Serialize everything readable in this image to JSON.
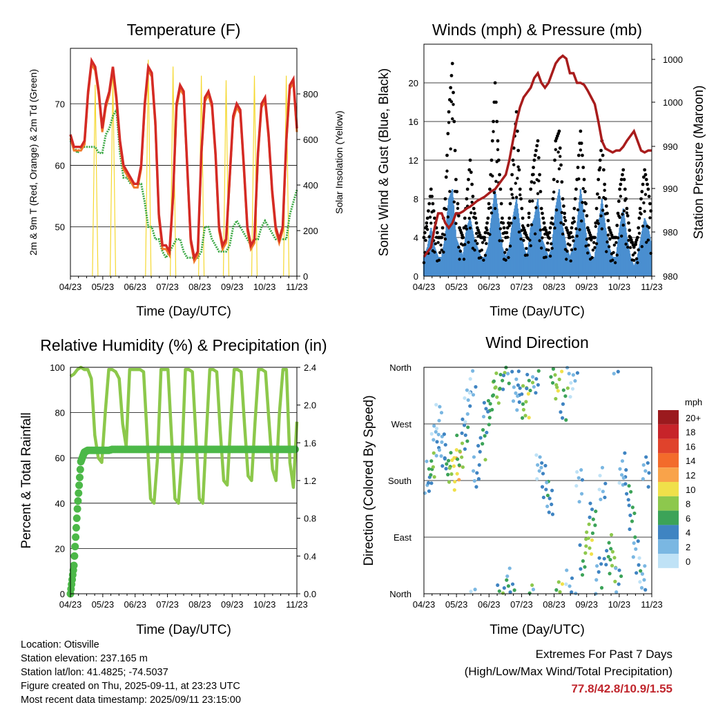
{
  "colors": {
    "temp2m": "#d42a25",
    "temp9m": "#f07a2a",
    "dewpoint": "#3aa843",
    "solar": "#f5d830",
    "wind": "#4a8fd0",
    "gust": "#000000",
    "pressure": "#a81c1c",
    "rh": "#8cc84b",
    "precip": "#4cb848"
  },
  "x_ticks": [
    "04/23",
    "05/23",
    "06/23",
    "07/23",
    "08/23",
    "09/23",
    "10/23",
    "11/23"
  ],
  "chart_data": [
    {
      "id": "temperature",
      "type": "line",
      "title": "Temperature (F)",
      "xlabel": "Time (Day/UTC)",
      "ylabel": "2m & 9m T (Red, Orange) & 2m Td (Green)",
      "ylabel_right": "Solar Insolation (Yellow)",
      "ylim": [
        42,
        79
      ],
      "yticks": [
        50,
        60,
        70
      ],
      "ylim_right": [
        0,
        1000
      ],
      "yticks_right": [
        0,
        200,
        400,
        600,
        800
      ],
      "grid": true,
      "series": [
        {
          "key": "t2m",
          "values": [
            65,
            63,
            63,
            63,
            64,
            72,
            77,
            76,
            72,
            66,
            70,
            72,
            76,
            71,
            64,
            60,
            59,
            58,
            57,
            57,
            60,
            70,
            76,
            75,
            67,
            52,
            47,
            47,
            46,
            55,
            70,
            73,
            72,
            60,
            48,
            45,
            46,
            62,
            71,
            72,
            70,
            62,
            50,
            47,
            48,
            58,
            68,
            70,
            69,
            60,
            50,
            47,
            48,
            62,
            70,
            71,
            65,
            56,
            50,
            48,
            50,
            64,
            73,
            74,
            66
          ]
        },
        {
          "key": "td2m",
          "values": [
            64,
            63,
            62,
            63,
            63,
            63,
            63,
            63,
            62,
            62,
            65,
            66,
            68,
            69,
            62,
            58,
            58,
            57,
            57,
            57,
            57,
            54,
            50,
            50,
            48,
            48,
            46,
            45,
            46,
            47,
            48,
            48,
            46,
            45,
            45,
            45,
            45,
            46,
            50,
            50,
            48,
            47,
            46,
            46,
            46,
            47,
            50,
            51,
            50,
            49,
            48,
            47,
            48,
            48,
            50,
            51,
            50,
            49,
            48,
            48,
            48,
            48,
            52,
            54,
            56
          ]
        },
        {
          "key": "solar",
          "values": [
            0,
            0,
            0,
            0,
            0,
            0,
            0,
            840,
            0,
            0,
            0,
            0,
            880,
            0,
            0,
            0,
            0,
            0,
            0,
            0,
            0,
            0,
            950,
            0,
            0,
            0,
            0,
            0,
            0,
            920,
            0,
            0,
            0,
            0,
            0,
            0,
            0,
            880,
            0,
            0,
            0,
            0,
            0,
            0,
            860,
            0,
            0,
            0,
            0,
            0,
            0,
            0,
            880,
            0,
            0,
            0,
            0,
            0,
            0,
            0,
            0,
            880,
            0,
            0,
            0
          ]
        }
      ]
    },
    {
      "id": "winds",
      "type": "scatter",
      "title": "Winds (mph) & Pressure (mb)",
      "xlabel": "Time (Day/UTC)",
      "ylabel": "Sonic Wind & Gust (Blue, Black)",
      "ylabel_right": "Station Pressure (Maroon)",
      "ylim": [
        0,
        24
      ],
      "yticks": [
        0,
        4,
        8,
        12,
        16,
        20
      ],
      "yticks_right_labels": [
        "980",
        "980",
        "990",
        "990",
        "1000",
        "1000"
      ],
      "grid": true,
      "series": [
        {
          "key": "wind",
          "values": [
            2,
            3,
            5,
            3,
            2,
            2,
            4,
            8,
            9,
            4,
            3,
            2,
            5,
            6,
            4,
            3,
            2,
            2,
            3,
            6,
            9,
            6,
            3,
            2,
            3,
            6,
            8,
            5,
            3,
            2,
            5,
            6,
            8,
            4,
            3,
            2,
            3,
            7,
            9,
            5,
            3,
            2,
            3,
            5,
            9,
            6,
            3,
            2,
            2,
            5,
            8,
            5,
            3,
            2,
            2,
            5,
            7,
            4,
            2,
            1,
            2,
            4,
            6,
            5,
            3
          ]
        },
        {
          "key": "gust",
          "values": [
            4,
            6,
            9,
            6,
            4,
            4,
            8,
            17,
            22,
            10,
            5,
            4,
            8,
            12,
            7,
            5,
            4,
            4,
            6,
            12,
            20,
            12,
            6,
            4,
            6,
            12,
            17,
            9,
            5,
            4,
            9,
            12,
            14,
            7,
            5,
            4,
            6,
            14,
            15,
            8,
            5,
            4,
            6,
            10,
            15,
            10,
            5,
            4,
            4,
            10,
            14,
            8,
            5,
            4,
            4,
            9,
            11,
            7,
            4,
            3,
            4,
            8,
            11,
            9,
            6
          ]
        },
        {
          "key": "pressure",
          "values": [
            2,
            2.5,
            3,
            5,
            6.5,
            6.5,
            5.5,
            5,
            5.5,
            6.5,
            6.5,
            6.7,
            7,
            7.2,
            7.5,
            7.8,
            8,
            8.2,
            8.5,
            8.8,
            9,
            9.5,
            10,
            10.5,
            12,
            14,
            16,
            17.5,
            18.5,
            19,
            19.5,
            20.5,
            21,
            20,
            19.5,
            20,
            21,
            22,
            22.5,
            22.8,
            22.5,
            21,
            21,
            20,
            20,
            19.8,
            19.2,
            18.5,
            17.8,
            16,
            14,
            13.2,
            13,
            12.8,
            13,
            13,
            13.4,
            14,
            14.5,
            15,
            14,
            13,
            12.8,
            13,
            13
          ]
        }
      ]
    },
    {
      "id": "humidity",
      "type": "line",
      "title": "Relative Humidity (%) & Precipitation (in)",
      "xlabel": "Time (Day/UTC)",
      "ylabel": "Percent & Total Rainfall",
      "ylim": [
        0,
        100
      ],
      "yticks": [
        0,
        20,
        40,
        60,
        80,
        100
      ],
      "ylim_right": [
        0,
        2.4
      ],
      "yticks_right": [
        "0.0",
        "0.4",
        "0.8",
        "1.2",
        "1.6",
        "2.0",
        "2.4"
      ],
      "grid": true,
      "series": [
        {
          "key": "rh",
          "values": [
            96,
            97,
            99,
            100,
            99,
            99,
            95,
            70,
            60,
            58,
            80,
            99,
            99,
            98,
            95,
            75,
            65,
            99,
            99,
            99,
            99,
            98,
            70,
            42,
            40,
            60,
            99,
            99,
            99,
            70,
            42,
            40,
            60,
            99,
            99,
            98,
            70,
            42,
            40,
            70,
            99,
            99,
            98,
            72,
            50,
            48,
            75,
            99,
            99,
            98,
            74,
            52,
            50,
            76,
            99,
            99,
            98,
            76,
            55,
            50,
            80,
            99,
            99,
            58,
            47,
            76
          ]
        },
        {
          "key": "precip",
          "values": [
            0.0,
            0.3,
            0.9,
            1.4,
            1.5,
            1.52,
            1.52,
            1.52,
            1.52,
            1.52,
            1.52,
            1.52,
            1.53,
            1.53,
            1.53,
            1.53,
            1.53,
            1.53,
            1.53,
            1.53,
            1.53,
            1.53,
            1.53,
            1.53,
            1.53,
            1.53,
            1.53,
            1.53,
            1.53,
            1.53,
            1.53,
            1.53,
            1.53,
            1.53,
            1.53,
            1.53,
            1.53,
            1.53,
            1.53,
            1.53,
            1.53,
            1.53,
            1.53,
            1.53,
            1.53,
            1.53,
            1.53,
            1.53,
            1.53,
            1.53,
            1.53,
            1.53,
            1.53,
            1.53,
            1.53,
            1.53,
            1.53,
            1.53,
            1.53,
            1.53,
            1.53,
            1.53,
            1.53,
            1.53,
            1.53,
            1.53
          ]
        }
      ]
    },
    {
      "id": "wind-direction",
      "type": "scatter",
      "title": "Wind Direction",
      "xlabel": "Time (Day/UTC)",
      "ylabel": "Direction (Colored By Speed)",
      "yticks": [
        "North",
        "East",
        "South",
        "West",
        "North"
      ],
      "legend_title": "mph",
      "legend_placement": "right",
      "legend": [
        {
          "label": "20+",
          "color": "#9b1a1e"
        },
        {
          "label": "18",
          "color": "#c7242a"
        },
        {
          "label": "16",
          "color": "#e0432c"
        },
        {
          "label": "14",
          "color": "#f36b2b"
        },
        {
          "label": "12",
          "color": "#f9a34a"
        },
        {
          "label": "10",
          "color": "#f0e04a"
        },
        {
          "label": "8",
          "color": "#8dc84d"
        },
        {
          "label": "6",
          "color": "#3ca358"
        },
        {
          "label": "4",
          "color": "#3f84c2"
        },
        {
          "label": "2",
          "color": "#7ab7e2"
        },
        {
          "label": "0",
          "color": "#bfe2f6"
        }
      ],
      "points": [
        {
          "t": 0.5,
          "d": 190,
          "s": 3
        },
        {
          "t": 0.8,
          "d": 200,
          "s": 6
        },
        {
          "t": 1.2,
          "d": 240,
          "s": 2
        },
        {
          "t": 1.6,
          "d": 280,
          "s": 1
        },
        {
          "t": 2.0,
          "d": 230,
          "s": 3
        },
        {
          "t": 2.5,
          "d": 210,
          "s": 5
        },
        {
          "t": 3.0,
          "d": 195,
          "s": 9
        },
        {
          "t": 3.4,
          "d": 205,
          "s": 10
        },
        {
          "t": 3.8,
          "d": 225,
          "s": 7
        },
        {
          "t": 4.2,
          "d": 260,
          "s": 4
        },
        {
          "t": 4.6,
          "d": 300,
          "s": 2
        },
        {
          "t": 5.0,
          "d": 340,
          "s": 1
        },
        {
          "t": 5.5,
          "d": 200,
          "s": 3
        },
        {
          "t": 6.0,
          "d": 240,
          "s": 5
        },
        {
          "t": 6.5,
          "d": 280,
          "s": 4
        },
        {
          "t": 7.0,
          "d": 310,
          "s": 6
        },
        {
          "t": 7.5,
          "d": 330,
          "s": 7
        },
        {
          "t": 8.0,
          "d": 350,
          "s": 6
        },
        {
          "t": 8.5,
          "d": 355,
          "s": 5
        },
        {
          "t": 9.0,
          "d": 20,
          "s": 3
        },
        {
          "t": 9.5,
          "d": 330,
          "s": 2
        },
        {
          "t": 10.0,
          "d": 300,
          "s": 4
        },
        {
          "t": 10.5,
          "d": 310,
          "s": 8
        },
        {
          "t": 11.0,
          "d": 350,
          "s": 6
        },
        {
          "t": 11.5,
          "d": 340,
          "s": 3
        },
        {
          "t": 12.0,
          "d": 200,
          "s": 2
        },
        {
          "t": 12.5,
          "d": 180,
          "s": 4
        },
        {
          "t": 13.0,
          "d": 150,
          "s": 3
        },
        {
          "t": 13.5,
          "d": 340,
          "s": 7
        },
        {
          "t": 14.0,
          "d": 355,
          "s": 8
        },
        {
          "t": 14.5,
          "d": 300,
          "s": 5
        },
        {
          "t": 15.0,
          "d": 20,
          "s": 2
        },
        {
          "t": 15.5,
          "d": 340,
          "s": 1
        },
        {
          "t": 16.0,
          "d": 170,
          "s": 1
        },
        {
          "t": 16.5,
          "d": 60,
          "s": 6
        },
        {
          "t": 17.0,
          "d": 90,
          "s": 8
        },
        {
          "t": 17.5,
          "d": 120,
          "s": 5
        },
        {
          "t": 18.0,
          "d": 30,
          "s": 3
        },
        {
          "t": 18.5,
          "d": 180,
          "s": 2
        },
        {
          "t": 19.0,
          "d": 70,
          "s": 5
        },
        {
          "t": 19.5,
          "d": 40,
          "s": 7
        },
        {
          "t": 20.0,
          "d": 20,
          "s": 3
        },
        {
          "t": 20.5,
          "d": 200,
          "s": 2
        },
        {
          "t": 21.0,
          "d": 170,
          "s": 4
        },
        {
          "t": 21.5,
          "d": 120,
          "s": 5
        },
        {
          "t": 22.0,
          "d": 60,
          "s": 3
        },
        {
          "t": 22.5,
          "d": 30,
          "s": 1
        },
        {
          "t": 23.0,
          "d": 200,
          "s": 3
        }
      ]
    }
  ],
  "meta": {
    "location": "Location: Otisville",
    "elevation": "Station elevation: 237.165 m",
    "latlon": "Station lat/lon: 41.4825; -74.5037",
    "created": "Figure created on Thu, 2025-09-11, at 23:23 UTC",
    "recent": "Most recent data timestamp: 2025/09/11 23:15:00"
  },
  "extremes": {
    "title": "Extremes For Past 7 Days",
    "subtitle": "(High/Low/Max Wind/Total Precipitation)",
    "values": "77.8/42.8/10.9/1.55"
  }
}
